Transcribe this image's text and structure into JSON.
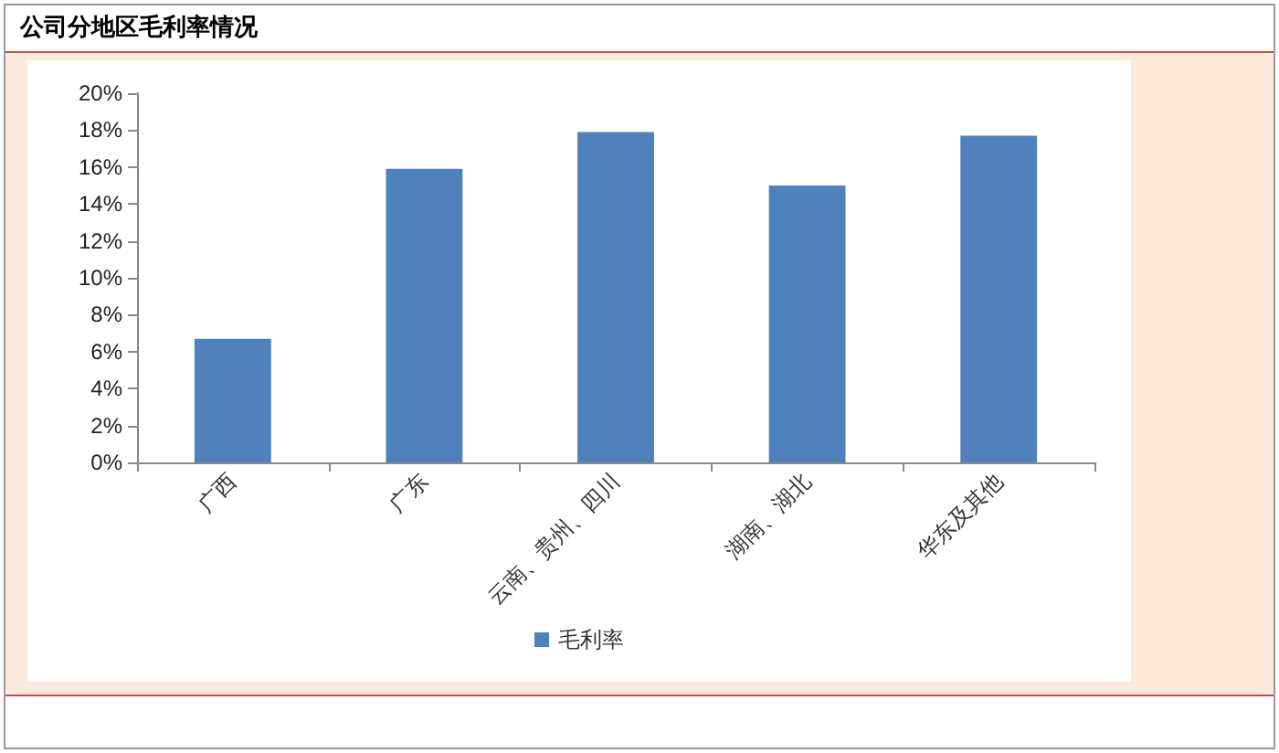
{
  "chart_data": {
    "type": "bar",
    "title": "公司分地区毛利率情况",
    "categories": [
      "广西",
      "广东",
      "云南、贵州、四川",
      "湖南、湖北",
      "华东及其他"
    ],
    "series": [
      {
        "name": "毛利率",
        "color": "#4f81bd",
        "values": [
          6.7,
          15.9,
          17.9,
          15.0,
          17.7
        ]
      }
    ],
    "ylim": [
      0,
      20
    ],
    "yticks": [
      {
        "value": 0,
        "label": "0%"
      },
      {
        "value": 2,
        "label": "2%"
      },
      {
        "value": 4,
        "label": "4%"
      },
      {
        "value": 6,
        "label": "6%"
      },
      {
        "value": 8,
        "label": "8%"
      },
      {
        "value": 10,
        "label": "10%"
      },
      {
        "value": 12,
        "label": "12%"
      },
      {
        "value": 14,
        "label": "14%"
      },
      {
        "value": 16,
        "label": "16%"
      },
      {
        "value": 18,
        "label": "18%"
      },
      {
        "value": 20,
        "label": "20%"
      }
    ],
    "grid": false,
    "legend": "bottom"
  }
}
